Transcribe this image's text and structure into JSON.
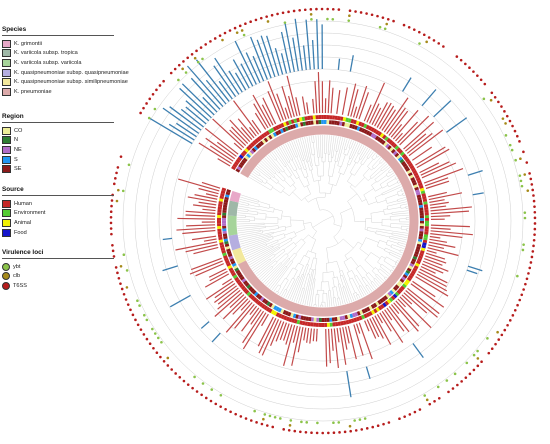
{
  "legend": {
    "species": {
      "title": "Species",
      "items": [
        {
          "label": "K. grimontii",
          "color": "#e8a8c8"
        },
        {
          "label": "K. variicola subsp. tropica",
          "color": "#9fb8a8"
        },
        {
          "label": "K. variicola subsp. variicola",
          "color": "#a6d49a"
        },
        {
          "label": "K. quasipneumoniae subsp. quasipneumoniae",
          "color": "#b5aee0"
        },
        {
          "label": "K. quasipneumoniae subsp. similipneumoniae",
          "color": "#f2e89c"
        },
        {
          "label": "K. pneumoniae",
          "color": "#dcaaaa"
        }
      ]
    },
    "region": {
      "title": "Region",
      "items": [
        {
          "label": "CO",
          "color": "#eeee99"
        },
        {
          "label": "N",
          "color": "#2e7d32"
        },
        {
          "label": "NE",
          "color": "#b06cc8"
        },
        {
          "label": "S",
          "color": "#2196f3"
        },
        {
          "label": "SE",
          "color": "#8b1a1a"
        }
      ]
    },
    "source": {
      "title": "Source",
      "items": [
        {
          "label": "Human",
          "color": "#c62828"
        },
        {
          "label": "Environment",
          "color": "#55cc33"
        },
        {
          "label": "Animal",
          "color": "#f2f200"
        },
        {
          "label": "Food",
          "color": "#1515cc"
        }
      ]
    },
    "virulence": {
      "title": "Virulence loci",
      "items": [
        {
          "label": "ybt",
          "color": "#8bc34a"
        },
        {
          "label": "clb",
          "color": "#a68a1a"
        },
        {
          "label": "T6SS",
          "color": "#b71c1c"
        }
      ]
    }
  },
  "colors": {
    "bar_red": "#c24a4a",
    "bar_blue": "#3d7fb0",
    "branch": "#c9c9c9",
    "guide_circle": "#cfcfcf"
  }
}
